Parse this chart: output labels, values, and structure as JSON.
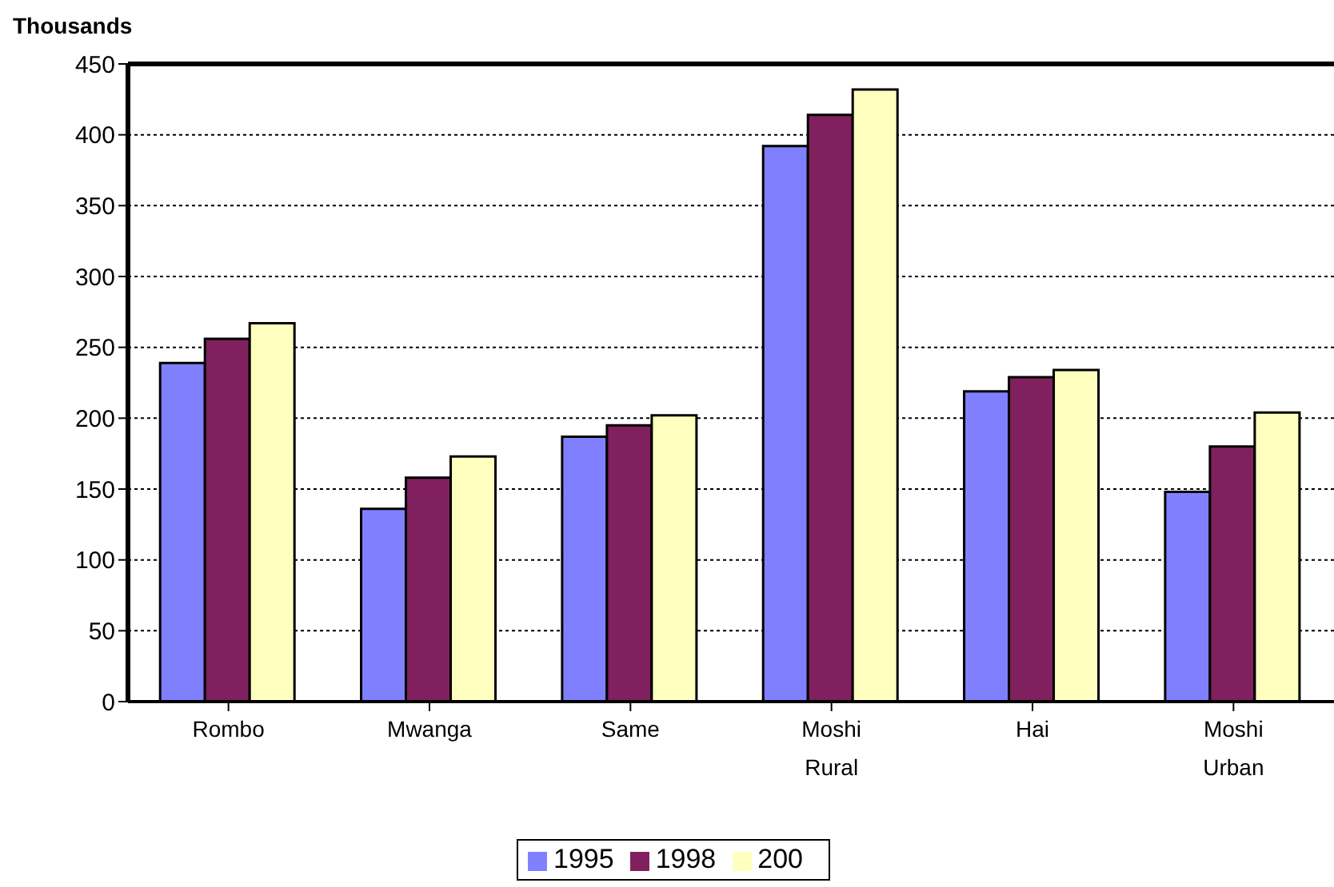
{
  "chart_data": {
    "type": "bar",
    "ylabel": "Thousands",
    "categories": [
      "Rombo",
      "Mwanga",
      "Same",
      "Moshi Rural",
      "Hai",
      "Moshi Urban"
    ],
    "series": [
      {
        "name": "1995",
        "color": "#8080ff",
        "values": [
          239,
          136,
          187,
          392,
          219,
          148
        ]
      },
      {
        "name": "1998",
        "color": "#80205e",
        "values": [
          256,
          158,
          195,
          414,
          229,
          180
        ]
      },
      {
        "name": "200",
        "color": "#ffffc0",
        "values": [
          267,
          173,
          202,
          432,
          234,
          204
        ]
      }
    ],
    "ylim": [
      0,
      450
    ],
    "yticks": [
      0,
      50,
      100,
      150,
      200,
      250,
      300,
      350,
      400,
      450
    ],
    "grid": "y",
    "legend": "bottom"
  }
}
